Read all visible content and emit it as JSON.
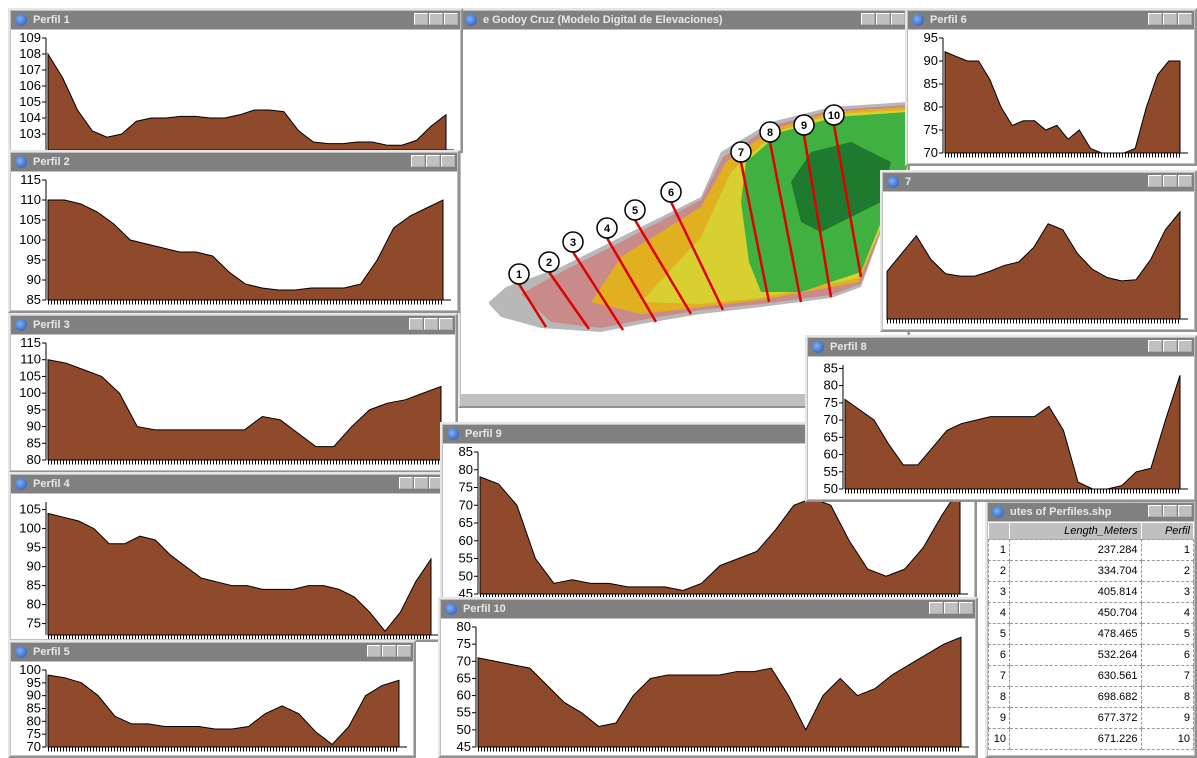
{
  "map_window": {
    "title": "e Godoy Cruz (Modelo Digital de Elevaciones)",
    "labels": [
      "1",
      "2",
      "3",
      "4",
      "5",
      "6",
      "7",
      "8",
      "9",
      "10"
    ]
  },
  "table": {
    "title": "utes of Perfiles.shp",
    "columns": [
      "Length_Meters",
      "Perfil"
    ],
    "rows": [
      [
        1,
        237.284,
        1
      ],
      [
        2,
        334.704,
        2
      ],
      [
        3,
        405.814,
        3
      ],
      [
        4,
        450.704,
        4
      ],
      [
        5,
        478.465,
        5
      ],
      [
        6,
        532.264,
        6
      ],
      [
        7,
        630.561,
        7
      ],
      [
        8,
        698.682,
        8
      ],
      [
        9,
        677.372,
        9
      ],
      [
        10,
        671.226,
        10
      ]
    ]
  },
  "profiles": [
    {
      "title": "Perfil 1",
      "ylim": [
        102,
        109
      ],
      "yticks": [
        103,
        104,
        105,
        106,
        107,
        108,
        109
      ],
      "values": [
        108,
        106.5,
        104.5,
        103.2,
        102.8,
        103,
        103.8,
        104,
        104,
        104.1,
        104.1,
        104,
        104,
        104.2,
        104.5,
        104.5,
        104.4,
        103.2,
        102.5,
        102.4,
        102.4,
        102.5,
        102.5,
        102.3,
        102.3,
        102.6,
        103.5,
        104.2
      ]
    },
    {
      "title": "Perfil 2",
      "ylim": [
        85,
        115
      ],
      "yticks": [
        85,
        90,
        95,
        100,
        105,
        110,
        115
      ],
      "values": [
        110,
        110,
        109,
        107,
        104,
        100,
        99,
        98,
        97,
        97,
        96,
        92,
        89,
        88,
        87.5,
        87.5,
        88,
        88,
        88,
        89,
        95,
        103,
        106,
        108,
        110
      ]
    },
    {
      "title": "Perfil 3",
      "ylim": [
        80,
        115
      ],
      "yticks": [
        80,
        85,
        90,
        95,
        100,
        105,
        110,
        115
      ],
      "values": [
        110,
        109,
        107,
        105,
        100,
        90,
        89,
        89,
        89,
        89,
        89,
        89,
        93,
        92,
        88,
        84,
        84,
        90,
        95,
        97,
        98,
        100,
        102
      ]
    },
    {
      "title": "Perfil 4",
      "ylim": [
        72,
        107
      ],
      "yticks": [
        75,
        80,
        85,
        90,
        95,
        100,
        105
      ],
      "values": [
        104,
        103,
        102,
        100,
        96,
        96,
        98,
        97,
        93,
        90,
        87,
        86,
        85,
        85,
        84,
        84,
        84,
        85,
        85,
        84,
        82,
        78,
        73,
        78,
        86,
        92
      ]
    },
    {
      "title": "Perfil 5",
      "ylim": [
        70,
        100
      ],
      "yticks": [
        70,
        75,
        80,
        85,
        90,
        95,
        100
      ],
      "values": [
        98,
        97,
        95,
        90,
        82,
        79,
        79,
        78,
        78,
        78,
        77,
        77,
        78,
        83,
        86,
        83,
        76,
        71,
        78,
        90,
        94,
        96
      ]
    },
    {
      "title": "Perfil 6",
      "ylim": [
        70,
        95
      ],
      "yticks": [
        70,
        75,
        80,
        85,
        90,
        95
      ],
      "values": [
        92,
        91,
        90,
        90,
        86,
        80,
        76,
        77,
        77,
        75,
        76,
        73,
        75,
        71,
        70,
        70,
        70,
        71,
        80,
        87,
        90,
        90
      ]
    },
    {
      "title": "7",
      "ylim": [
        0,
        100
      ],
      "values": [
        40,
        55,
        70,
        50,
        38,
        36,
        36,
        40,
        45,
        48,
        60,
        80,
        75,
        55,
        42,
        35,
        32,
        33,
        50,
        75,
        90
      ]
    },
    {
      "title": "Perfil 8",
      "ylim": [
        50,
        86
      ],
      "yticks": [
        50,
        55,
        60,
        65,
        70,
        75,
        80,
        85
      ],
      "values": [
        76,
        73,
        70,
        63,
        57,
        57,
        62,
        67,
        69,
        70,
        71,
        71,
        71,
        71,
        74,
        67,
        52,
        50,
        50,
        51,
        55,
        56,
        70,
        83
      ]
    },
    {
      "title": "Perfil 9",
      "ylim": [
        45,
        85
      ],
      "yticks": [
        45,
        50,
        55,
        60,
        65,
        70,
        75,
        80,
        85
      ],
      "values": [
        78,
        76,
        70,
        55,
        48,
        49,
        48,
        48,
        47,
        47,
        47,
        46,
        48,
        53,
        55,
        57,
        63,
        70,
        72,
        70,
        60,
        52,
        50,
        52,
        58,
        67,
        75
      ]
    },
    {
      "title": "Perfil 10",
      "ylim": [
        45,
        80
      ],
      "yticks": [
        45,
        50,
        55,
        60,
        65,
        70,
        75,
        80
      ],
      "values": [
        71,
        70,
        69,
        68,
        63,
        58,
        55,
        51,
        52,
        60,
        65,
        66,
        66,
        66,
        66,
        67,
        67,
        68,
        60,
        50,
        60,
        65,
        60,
        62,
        66,
        69,
        72,
        75,
        77
      ]
    }
  ]
}
